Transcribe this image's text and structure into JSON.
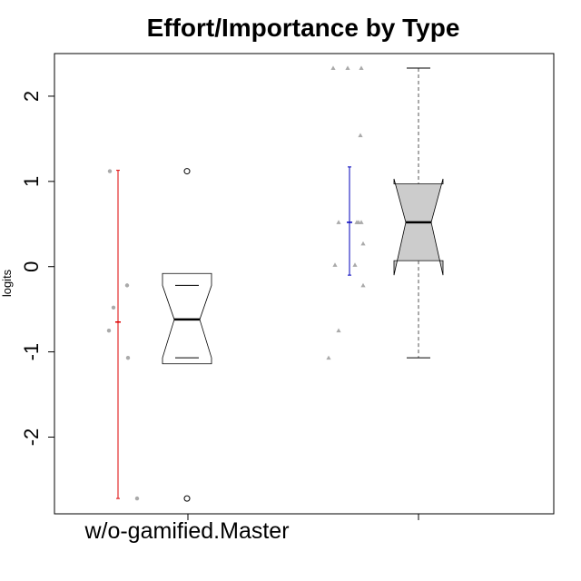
{
  "chart_data": {
    "type": "boxplot",
    "title": "Effort/Importance by Type",
    "ylabel": "logits",
    "xlabel": "",
    "ylim": [
      -2.9,
      2.5
    ],
    "yticks": [
      -2,
      -1,
      0,
      1,
      2
    ],
    "ytick_labels": [
      "-2",
      "-1",
      "0",
      "1",
      "2"
    ],
    "categories": [
      "w/o-gamified.Master",
      ""
    ],
    "groups": [
      {
        "category": "w/o-gamified.Master",
        "box": {
          "whisker_low": -1.07,
          "q1": -1.07,
          "median": -0.62,
          "q3": -0.22,
          "whisker_high": -0.22,
          "notch_low": -1.14,
          "notch_high": -0.08,
          "fill": "#ffffff"
        },
        "outliers": [
          1.12,
          -2.72
        ],
        "errorbar": {
          "mean": -0.65,
          "low": -2.72,
          "high": 1.13,
          "color": "#dd0000"
        },
        "jitter_marker": "circle",
        "points": [
          1.12,
          -0.48,
          -0.75,
          -0.22,
          -1.07,
          -2.72
        ]
      },
      {
        "category": "",
        "box": {
          "whisker_low": -1.07,
          "q1": -0.1,
          "median": 0.52,
          "q3": 1.03,
          "whisker_high": 2.33,
          "notch_low": 0.07,
          "notch_high": 0.97,
          "fill": "#cccccc"
        },
        "outliers": [],
        "errorbar": {
          "mean": 0.52,
          "low": -0.1,
          "high": 1.17,
          "color": "#0000bb"
        },
        "jitter_marker": "triangle",
        "points": [
          2.33,
          2.33,
          2.33,
          1.54,
          0.52,
          0.52,
          0.52,
          0.52,
          0.27,
          0.02,
          0.02,
          -0.22,
          -0.75,
          -1.07
        ]
      }
    ],
    "point_color": "#aaaaaa"
  }
}
